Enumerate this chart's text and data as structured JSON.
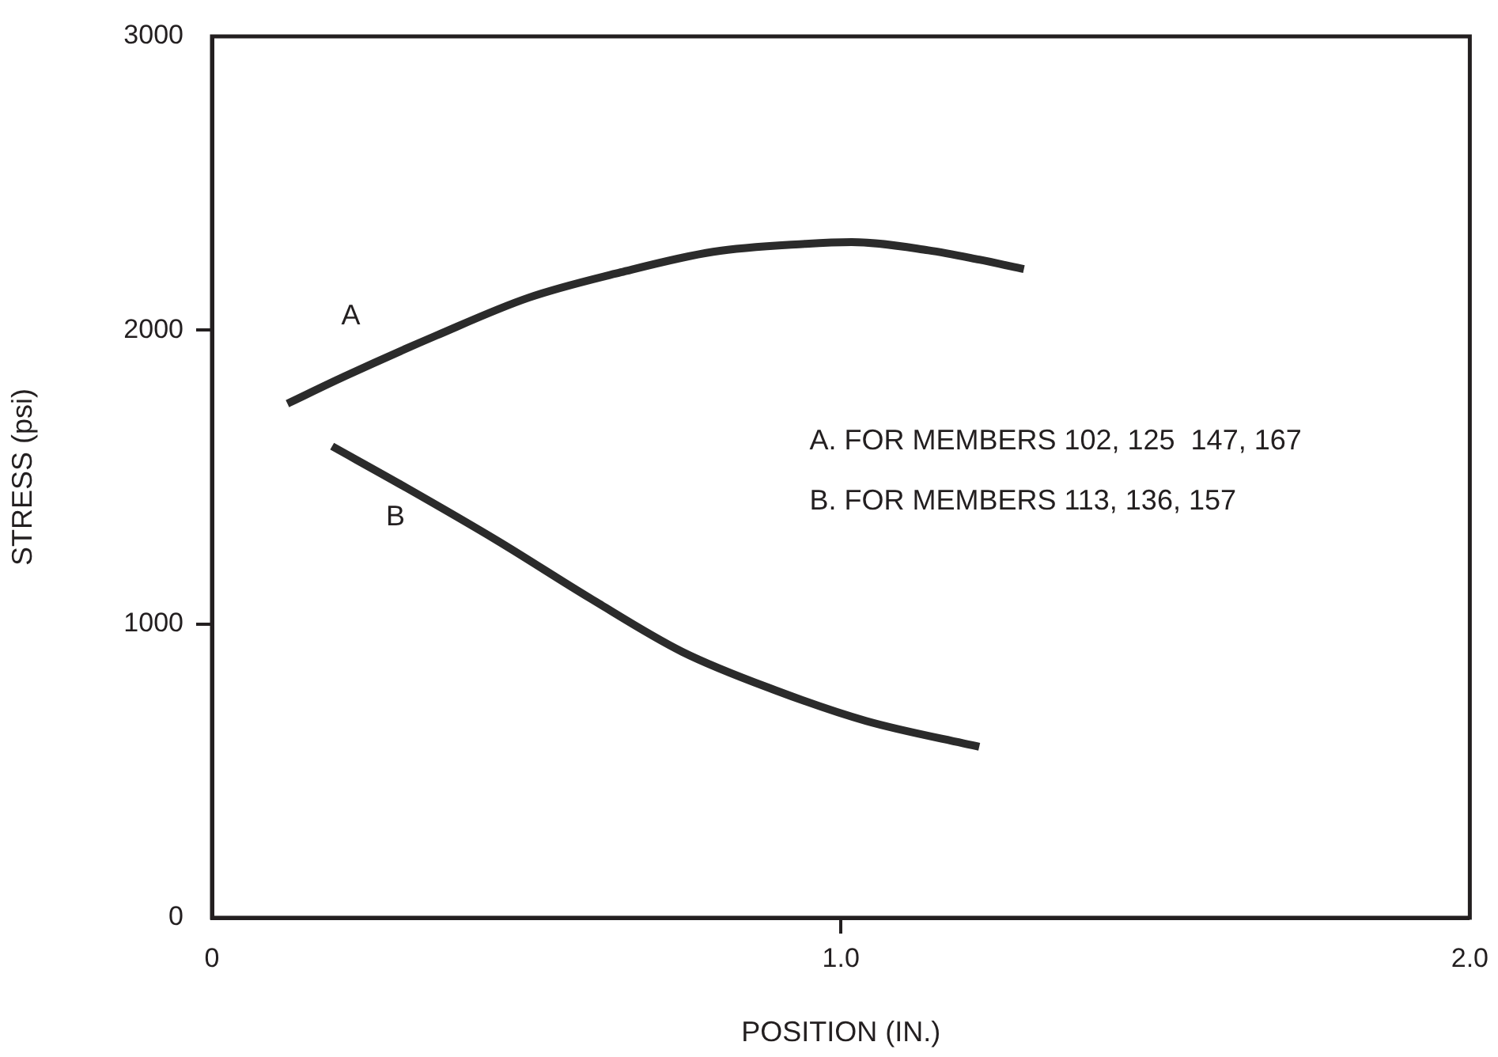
{
  "chart_data": {
    "type": "line",
    "xlabel": "POSITION (IN.)",
    "ylabel": "STRESS (psi)",
    "xlim": [
      0,
      2.0
    ],
    "xticks": [
      0,
      {
        "value": 1,
        "label": "1.0"
      },
      {
        "value": 2,
        "label": "2.0"
      }
    ],
    "ylim": [
      0,
      3000
    ],
    "yticks": [
      0,
      1000,
      2000,
      3000
    ],
    "grid": false,
    "legend": false,
    "marker": "none",
    "line_style": "solid",
    "series": [
      {
        "name": "A",
        "color": "#2b2b2b",
        "x": [
          0.12,
          0.21,
          0.357,
          0.504,
          0.65,
          0.797,
          0.944,
          1.017,
          1.139,
          1.22,
          1.291
        ],
        "values": [
          1750,
          1842,
          1982,
          2111,
          2197,
          2267,
          2294,
          2300,
          2272,
          2240,
          2208
        ]
      },
      {
        "name": "B",
        "color": "#2b2b2b",
        "x": [
          0.191,
          0.308,
          0.455,
          0.601,
          0.748,
          0.895,
          1.04,
          1.22
        ],
        "values": [
          1605,
          1465,
          1282,
          1088,
          905,
          775,
          670,
          582
        ]
      }
    ],
    "annotations": [
      "A. FOR MEMBERS 102, 125  147, 167",
      "B. FOR MEMBERS 113, 136, 157"
    ]
  }
}
